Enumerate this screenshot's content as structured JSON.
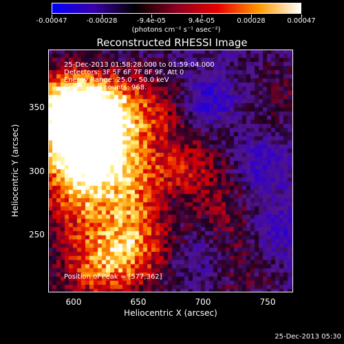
{
  "chart_data": {
    "type": "heatmap",
    "title": "Reconstructed RHESSI Image",
    "xlabel": "Heliocentric X (arcsec)",
    "ylabel": "Heliocentric Y (arcsec)",
    "xlim": [
      580,
      770
    ],
    "ylim": [
      205,
      395
    ],
    "x_ticks": [
      "600",
      "650",
      "700",
      "750"
    ],
    "x_tick_values": [
      600,
      650,
      700,
      750
    ],
    "y_ticks": [
      "250",
      "300",
      "350"
    ],
    "y_tick_values": [
      250,
      300,
      350
    ],
    "colorbar": {
      "labels": [
        "-0.00047",
        "-0.00028",
        "-9.4e-05",
        "9.4e-05",
        "0.00028",
        "0.00047"
      ],
      "values": [
        -0.00047,
        -0.00028,
        -9.4e-05,
        9.4e-05,
        0.00028,
        0.00047
      ],
      "range": [
        -0.00047,
        0.00047
      ],
      "unit_label": "(photons cm⁻² s⁻¹ asec⁻²)",
      "colors": [
        "#0000ff",
        "#3a00a8",
        "#000000",
        "#8a0020",
        "#e80000",
        "#ff9a00",
        "#ffffff"
      ]
    },
    "annotations": [
      "25-Dec-2013 01:58:28.000 to 01:59:04.000",
      "Detectors: 3F 5F 6F 7F 8F 9F, Att 0",
      "Energy Range: 25.0 - 50.0 keV",
      "Clean     Total counts: 968."
    ],
    "peak_label": "Position of Peak = [577,362]",
    "peak_position": [
      577,
      362
    ],
    "sources": [
      {
        "x": 605,
        "y": 320,
        "strength": 1.0
      },
      {
        "x": 592,
        "y": 350,
        "strength": 0.9
      },
      {
        "x": 620,
        "y": 345,
        "strength": 0.8
      },
      {
        "x": 600,
        "y": 280,
        "strength": 0.6
      },
      {
        "x": 640,
        "y": 300,
        "strength": 0.55
      },
      {
        "x": 660,
        "y": 350,
        "strength": 0.45
      },
      {
        "x": 690,
        "y": 300,
        "strength": 0.45
      },
      {
        "x": 650,
        "y": 260,
        "strength": 0.5
      },
      {
        "x": 640,
        "y": 230,
        "strength": 0.55
      },
      {
        "x": 610,
        "y": 225,
        "strength": 0.5
      },
      {
        "x": 715,
        "y": 260,
        "strength": 0.3
      },
      {
        "x": 760,
        "y": 360,
        "strength": 0.25
      },
      {
        "x": 730,
        "y": 215,
        "strength": 0.2
      }
    ],
    "negative_regions": [
      {
        "x": 705,
        "y": 355,
        "strength": 0.6
      },
      {
        "x": 745,
        "y": 305,
        "strength": 0.45
      },
      {
        "x": 760,
        "y": 255,
        "strength": 0.5
      },
      {
        "x": 700,
        "y": 235,
        "strength": 0.35
      },
      {
        "x": 680,
        "y": 270,
        "strength": 0.3
      }
    ]
  },
  "footer": {
    "timestamp": "25-Dec-2013 05:30"
  }
}
